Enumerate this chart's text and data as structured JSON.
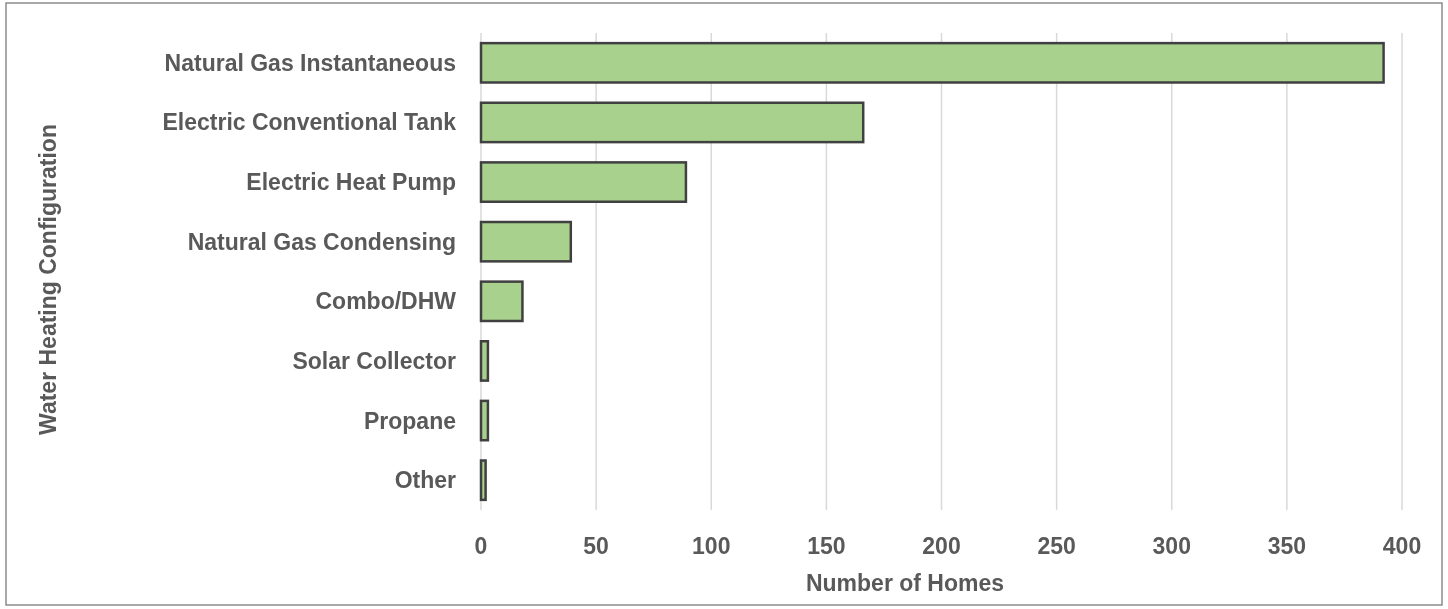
{
  "chart_data": {
    "type": "bar",
    "orientation": "horizontal",
    "categories": [
      "Natural Gas Instantaneous",
      "Electric Conventional Tank",
      "Electric Heat Pump",
      "Natural Gas Condensing",
      "Combo/DHW",
      "Solar Collector",
      "Propane",
      "Other"
    ],
    "values": [
      392,
      166,
      89,
      39,
      18,
      3,
      3,
      2
    ],
    "color": "#a9d18e",
    "xlabel": "Number of Homes",
    "ylabel": "Water Heating Configuration",
    "xlim": [
      0,
      400
    ],
    "xticks": [
      0,
      50,
      100,
      150,
      200,
      250,
      300,
      350,
      400
    ],
    "grid": "x"
  }
}
